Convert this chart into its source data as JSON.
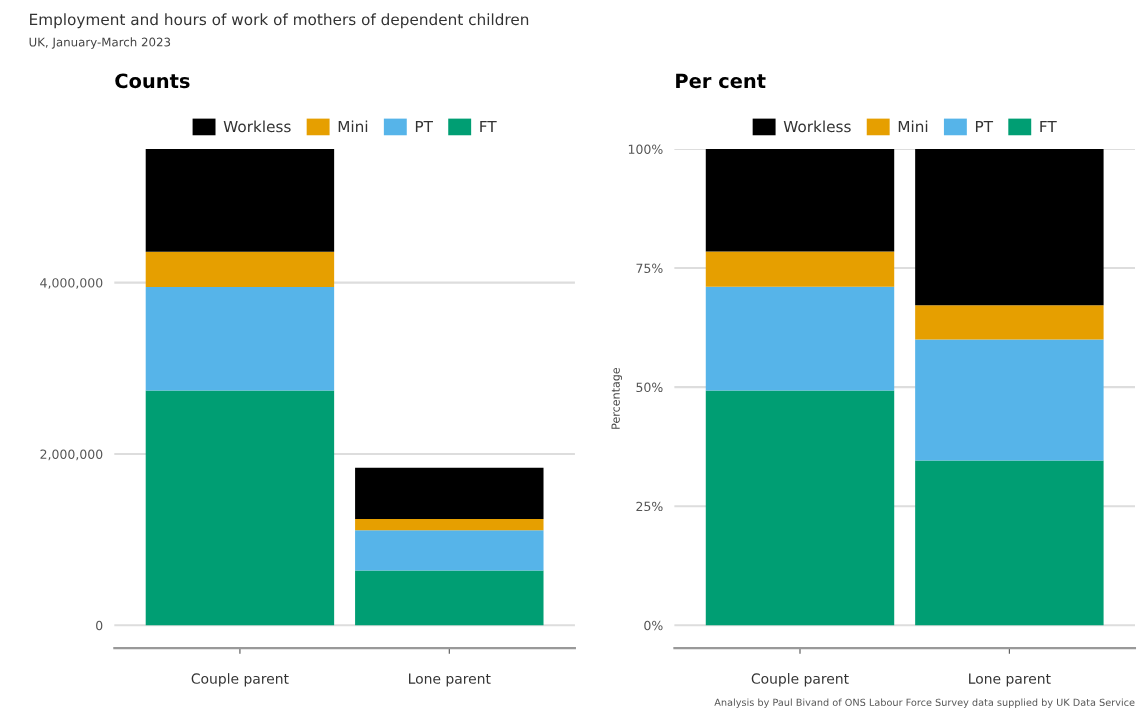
{
  "chart_data": [
    {
      "type": "bar",
      "title": "Counts",
      "stacked": true,
      "legend": "top",
      "grid": "y",
      "annotations": [
        "Employment and hours of work of mothers of dependent children",
        "UK, January-March 2023"
      ],
      "categories": [
        "Couple parent",
        "Lone parent"
      ],
      "series": [
        {
          "name": "FT",
          "color": "#009e73",
          "values": [
            2740000,
            640000
          ]
        },
        {
          "name": "PT",
          "color": "#56b4e9",
          "values": [
            1210000,
            470000
          ]
        },
        {
          "name": "Mini",
          "color": "#e69f00",
          "values": [
            410000,
            130000
          ]
        },
        {
          "name": "Workless",
          "color": "#000000",
          "values": [
            1200000,
            600000
          ]
        }
      ],
      "ylim": [
        -266000,
        5560000
      ],
      "yticks": [
        0,
        {
          "value": 2000000,
          "label": "2,000,000"
        },
        {
          "value": 4000000,
          "label": "4,000,000"
        }
      ]
    },
    {
      "type": "bar",
      "title": "Per cent",
      "stacked": true,
      "legend": "top",
      "grid": "y",
      "ylabel": "Percentage",
      "annotations": [
        "Analysis by Paul Bivand of ONS Labour Force Survey data supplied by UK Data Service"
      ],
      "categories": [
        "Couple parent",
        "Lone parent"
      ],
      "series": [
        {
          "name": "FT",
          "color": "#009e73",
          "values": [
            49.3,
            34.6
          ]
        },
        {
          "name": "PT",
          "color": "#56b4e9",
          "values": [
            21.8,
            25.4
          ]
        },
        {
          "name": "Mini",
          "color": "#e69f00",
          "values": [
            7.4,
            7.2
          ]
        },
        {
          "name": "Workless",
          "color": "#000000",
          "values": [
            21.5,
            32.8
          ]
        }
      ],
      "ylim": [
        -4.8,
        100
      ],
      "yticks": [
        {
          "value": 0,
          "label": "0%"
        },
        {
          "value": 25,
          "label": "25%"
        },
        {
          "value": 50,
          "label": "50%"
        },
        {
          "value": 75,
          "label": "75%"
        },
        {
          "value": 100,
          "label": "100%"
        }
      ]
    }
  ]
}
